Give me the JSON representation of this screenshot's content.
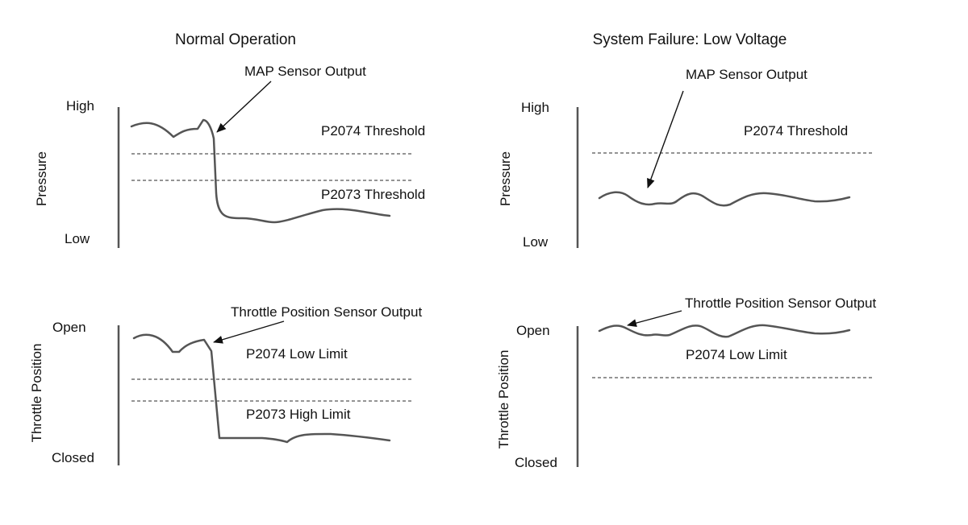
{
  "panels": {
    "left": {
      "title": "Normal Operation",
      "pressure": {
        "axis_label": "Pressure",
        "high_label": "High",
        "low_label": "Low",
        "sensor_label": "MAP Sensor Output",
        "upper_threshold_label": "P2074 Threshold",
        "lower_threshold_label": "P2073 Threshold"
      },
      "throttle": {
        "axis_label": "Throttle Position",
        "high_label": "Open",
        "low_label": "Closed",
        "sensor_label": "Throttle Position Sensor Output",
        "upper_threshold_label": "P2074 Low Limit",
        "lower_threshold_label": "P2073 High Limit"
      }
    },
    "right": {
      "title": "System Failure: Low Voltage",
      "pressure": {
        "axis_label": "Pressure",
        "high_label": "High",
        "low_label": "Low",
        "sensor_label": "MAP Sensor Output",
        "threshold_label": "P2074 Threshold"
      },
      "throttle": {
        "axis_label": "Throttle Position",
        "high_label": "Open",
        "low_label": "Closed",
        "sensor_label": "Throttle Position Sensor Output",
        "threshold_label": "P2074 Low Limit"
      }
    }
  },
  "colors": {
    "signal": "#555555",
    "axis": "#555555",
    "threshold": "#555555",
    "text": "#111111"
  }
}
